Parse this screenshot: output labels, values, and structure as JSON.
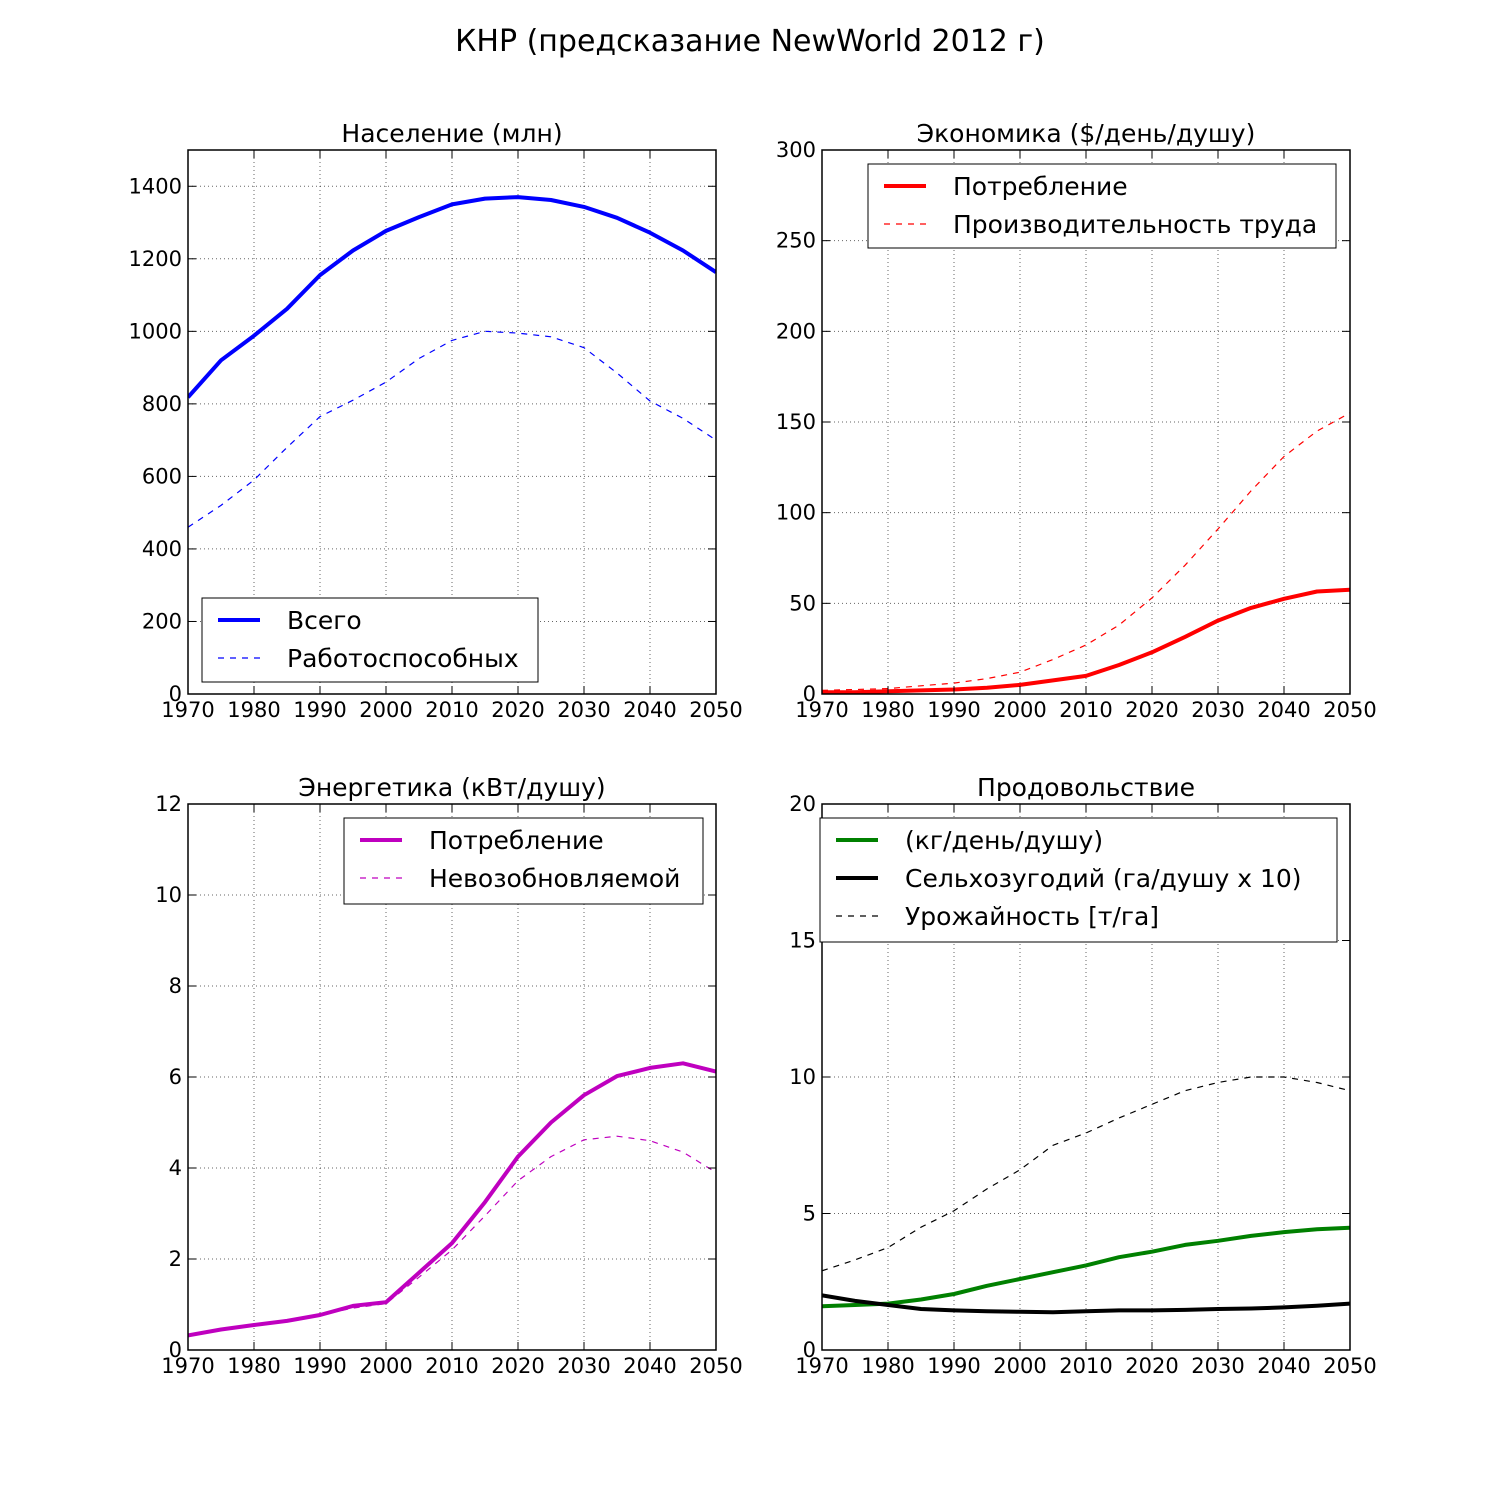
{
  "figure": {
    "title": "КНР (предсказание NewWorld 2012 г)"
  },
  "chart_data": [
    {
      "type": "line",
      "title": "Население (млн)",
      "xlim": [
        1970,
        2050
      ],
      "ylim": [
        0,
        1500
      ],
      "xticks": [
        1970,
        1980,
        1990,
        2000,
        2010,
        2020,
        2030,
        2040,
        2050
      ],
      "yticks": [
        0,
        200,
        400,
        600,
        800,
        1000,
        1200,
        1400
      ],
      "grid": true,
      "legend_position": "lower-left",
      "x": [
        1970,
        1975,
        1980,
        1985,
        1990,
        1995,
        2000,
        2005,
        2010,
        2015,
        2020,
        2025,
        2030,
        2035,
        2040,
        2045,
        2050
      ],
      "series": [
        {
          "name": "Всего",
          "color": "#0000ff",
          "style": "solid",
          "values": [
            818,
            920,
            988,
            1062,
            1155,
            1223,
            1277,
            1315,
            1350,
            1366,
            1370,
            1362,
            1343,
            1313,
            1272,
            1223,
            1163
          ]
        },
        {
          "name": "Работоспособных",
          "color": "#0000ff",
          "style": "dashed",
          "values": [
            460,
            520,
            590,
            680,
            765,
            810,
            860,
            925,
            975,
            1000,
            995,
            985,
            955,
            885,
            808,
            760,
            700
          ]
        }
      ]
    },
    {
      "type": "line",
      "title": "Экономика ($/день/душу)",
      "xlim": [
        1970,
        2050
      ],
      "ylim": [
        0,
        300
      ],
      "xticks": [
        1970,
        1980,
        1990,
        2000,
        2010,
        2020,
        2030,
        2040,
        2050
      ],
      "yticks": [
        0,
        50,
        100,
        150,
        200,
        250,
        300
      ],
      "grid": true,
      "legend_position": "upper-right",
      "x": [
        1970,
        1975,
        1980,
        1985,
        1990,
        1995,
        2000,
        2005,
        2010,
        2015,
        2020,
        2025,
        2030,
        2035,
        2040,
        2045,
        2050
      ],
      "series": [
        {
          "name": "Потребление",
          "color": "#ff0000",
          "style": "solid",
          "values": [
            1,
            1,
            1.5,
            2,
            2.5,
            3.5,
            5,
            7.5,
            10,
            16,
            23,
            31.5,
            40.5,
            47.5,
            52.5,
            56.5,
            57.5
          ]
        },
        {
          "name": "Производительность труда",
          "color": "#ff0000",
          "style": "dashed",
          "values": [
            2,
            2.5,
            3,
            4.5,
            6,
            8.5,
            12,
            19,
            27,
            38,
            53,
            71,
            91,
            112,
            131,
            145,
            155
          ]
        }
      ]
    },
    {
      "type": "line",
      "title": "Энергетика (кВт/душу)",
      "xlim": [
        1970,
        2050
      ],
      "ylim": [
        0,
        12
      ],
      "xticks": [
        1970,
        1980,
        1990,
        2000,
        2010,
        2020,
        2030,
        2040,
        2050
      ],
      "yticks": [
        0,
        2,
        4,
        6,
        8,
        10,
        12
      ],
      "grid": true,
      "legend_position": "upper-right",
      "x": [
        1970,
        1975,
        1980,
        1985,
        1990,
        1995,
        2000,
        2005,
        2010,
        2015,
        2020,
        2025,
        2030,
        2035,
        2040,
        2045,
        2050
      ],
      "series": [
        {
          "name": "Потребление",
          "color": "#bf00bf",
          "style": "solid",
          "values": [
            0.32,
            0.45,
            0.55,
            0.64,
            0.77,
            0.97,
            1.05,
            1.7,
            2.35,
            3.25,
            4.25,
            5.0,
            5.6,
            6.02,
            6.2,
            6.3,
            6.12
          ]
        },
        {
          "name": "Невозобновляемой",
          "color": "#bf00bf",
          "style": "dashed",
          "values": [
            0.32,
            0.45,
            0.55,
            0.64,
            0.77,
            0.92,
            1.02,
            1.6,
            2.2,
            2.95,
            3.72,
            4.25,
            4.62,
            4.7,
            4.6,
            4.35,
            3.9
          ]
        }
      ]
    },
    {
      "type": "line",
      "title": "Продовольствие",
      "xlim": [
        1970,
        2050
      ],
      "ylim": [
        0,
        20
      ],
      "xticks": [
        1970,
        1980,
        1990,
        2000,
        2010,
        2020,
        2030,
        2040,
        2050
      ],
      "yticks": [
        0,
        5,
        10,
        15,
        20
      ],
      "grid": true,
      "legend_position": "upper-right",
      "x": [
        1970,
        1975,
        1980,
        1985,
        1990,
        1995,
        2000,
        2005,
        2010,
        2015,
        2020,
        2025,
        2030,
        2035,
        2040,
        2045,
        2050
      ],
      "series": [
        {
          "name": "(кг/день/душу)",
          "color": "#008000",
          "style": "solid",
          "values": [
            1.6,
            1.65,
            1.7,
            1.85,
            2.05,
            2.35,
            2.6,
            2.85,
            3.1,
            3.4,
            3.6,
            3.85,
            4.0,
            4.18,
            4.32,
            4.42,
            4.48
          ]
        },
        {
          "name": "Сельхозугодий (га/душу x 10)",
          "color": "#000000",
          "style": "solid",
          "values": [
            2.0,
            1.8,
            1.65,
            1.5,
            1.45,
            1.42,
            1.4,
            1.38,
            1.42,
            1.45,
            1.45,
            1.47,
            1.5,
            1.52,
            1.56,
            1.62,
            1.7
          ]
        },
        {
          "name": "Урожайность [т/га]",
          "color": "#000000",
          "style": "dashed",
          "values": [
            2.9,
            3.3,
            3.75,
            4.5,
            5.1,
            5.9,
            6.6,
            7.5,
            7.95,
            8.5,
            9.0,
            9.5,
            9.8,
            10.0,
            10.0,
            9.8,
            9.5
          ]
        }
      ]
    }
  ]
}
